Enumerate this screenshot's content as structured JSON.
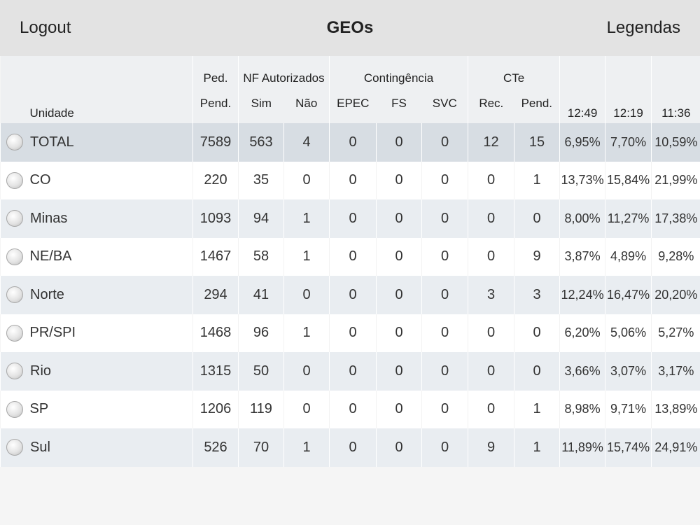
{
  "navbar": {
    "logout_label": "Logout",
    "title": "GEOs",
    "legend_label": "Legendas"
  },
  "table": {
    "header_groups": {
      "ped": "Ped.",
      "nf": "NF Autorizados",
      "contingencia": "Contingência",
      "cte": "CTe"
    },
    "headers": {
      "unidade": "Unidade",
      "pend": "Pend.",
      "sim": "Sim",
      "nao": "Não",
      "epec": "EPEC",
      "fs": "FS",
      "svc": "SVC",
      "rec": "Rec.",
      "cte_pend": "Pend.",
      "t1": "12:49",
      "t2": "12:19",
      "t3": "11:36"
    },
    "rows": [
      [
        "TOTAL",
        "7589",
        "563",
        "4",
        "0",
        "0",
        "0",
        "12",
        "15",
        "6,95%",
        "7,70%",
        "10,59%"
      ],
      [
        "CO",
        "220",
        "35",
        "0",
        "0",
        "0",
        "0",
        "0",
        "1",
        "13,73%",
        "15,84%",
        "21,99%"
      ],
      [
        "Minas",
        "1093",
        "94",
        "1",
        "0",
        "0",
        "0",
        "0",
        "0",
        "8,00%",
        "11,27%",
        "17,38%"
      ],
      [
        "NE/BA",
        "1467",
        "58",
        "1",
        "0",
        "0",
        "0",
        "0",
        "9",
        "3,87%",
        "4,89%",
        "9,28%"
      ],
      [
        "Norte",
        "294",
        "41",
        "0",
        "0",
        "0",
        "0",
        "3",
        "3",
        "12,24%",
        "16,47%",
        "20,20%"
      ],
      [
        "PR/SPI",
        "1468",
        "96",
        "1",
        "0",
        "0",
        "0",
        "0",
        "0",
        "6,20%",
        "5,06%",
        "5,27%"
      ],
      [
        "Rio",
        "1315",
        "50",
        "0",
        "0",
        "0",
        "0",
        "0",
        "0",
        "3,66%",
        "3,07%",
        "3,17%"
      ],
      [
        "SP",
        "1206",
        "119",
        "0",
        "0",
        "0",
        "0",
        "0",
        "1",
        "8,98%",
        "9,71%",
        "13,89%"
      ],
      [
        "Sul",
        "526",
        "70",
        "1",
        "0",
        "0",
        "0",
        "9",
        "1",
        "11,89%",
        "15,74%",
        "24,91%"
      ]
    ]
  }
}
